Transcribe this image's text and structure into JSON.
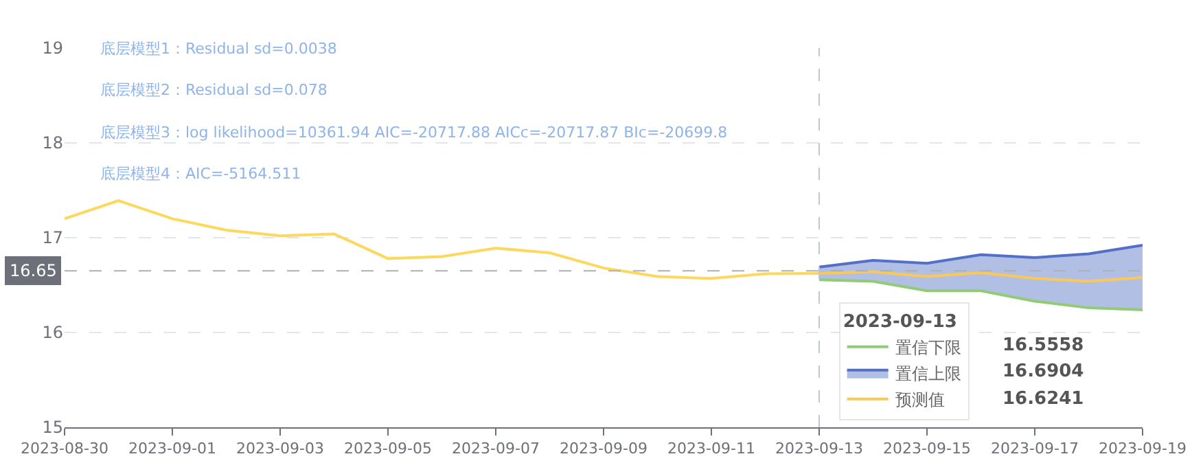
{
  "chart_data": {
    "type": "line",
    "x": [
      "2023-08-30",
      "2023-08-31",
      "2023-09-01",
      "2023-09-02",
      "2023-09-03",
      "2023-09-04",
      "2023-09-05",
      "2023-09-06",
      "2023-09-07",
      "2023-09-08",
      "2023-09-09",
      "2023-09-10",
      "2023-09-11",
      "2023-09-12",
      "2023-09-13"
    ],
    "series": [
      {
        "color": "#fdd85e",
        "values": [
          17.2,
          17.39,
          17.2,
          17.08,
          17.02,
          17.04,
          16.78,
          16.8,
          16.89,
          16.84,
          16.68,
          16.59,
          16.57,
          16.62,
          16.6241
        ]
      },
      {
        "name": "置信下限",
        "type": "line",
        "color": "#91cc75",
        "x": [
          "2023-09-13",
          "2023-09-14",
          "2023-09-15",
          "2023-09-16",
          "2023-09-17",
          "2023-09-18",
          "2023-09-19"
        ],
        "values": [
          16.5558,
          16.54,
          16.44,
          16.44,
          16.33,
          16.26,
          16.24
        ]
      },
      {
        "name": "置信上限",
        "type": "area",
        "color": "#5470c6",
        "x": [
          "2023-09-13",
          "2023-09-14",
          "2023-09-15",
          "2023-09-16",
          "2023-09-17",
          "2023-09-18",
          "2023-09-19"
        ],
        "values": [
          16.6904,
          16.76,
          16.73,
          16.82,
          16.79,
          16.83,
          16.92
        ]
      },
      {
        "name": "预测值",
        "type": "line",
        "color": "#fac858",
        "x": [
          "2023-09-13",
          "2023-09-14",
          "2023-09-15",
          "2023-09-16",
          "2023-09-17",
          "2023-09-18",
          "2023-09-19"
        ],
        "values": [
          16.6241,
          16.64,
          16.59,
          16.63,
          16.57,
          16.54,
          16.58
        ]
      }
    ],
    "xlim": [
      "2023-08-30",
      "2023-09-19"
    ],
    "xticks": [
      {
        "value": "2023-08-30",
        "label": "2023-08-30"
      },
      {
        "value": "2023-09-01",
        "label": "2023-09-01"
      },
      {
        "value": "2023-09-03",
        "label": "2023-09-03"
      },
      {
        "value": "2023-09-05",
        "label": "2023-09-05"
      },
      {
        "value": "2023-09-07",
        "label": "2023-09-07"
      },
      {
        "value": "2023-09-09",
        "label": "2023-09-09"
      },
      {
        "value": "2023-09-11",
        "label": "2023-09-11"
      },
      {
        "value": "2023-09-13",
        "label": "2023-09-13"
      },
      {
        "value": "2023-09-15",
        "label": "2023-09-15"
      },
      {
        "value": "2023-09-17",
        "label": "2023-09-17"
      },
      {
        "value": "2023-09-19",
        "label": "2023-09-19"
      }
    ],
    "ylim": [
      15,
      19
    ],
    "yticks": [
      15,
      16,
      17,
      18,
      19
    ],
    "grid": "y",
    "marker": "none",
    "line_style": "solid",
    "legend": "bottom right",
    "legend_title": "2023-09-13",
    "ref_lines": [
      {
        "axis": "x",
        "value": "2023-09-13",
        "label": null,
        "color": "#c0c4d8",
        "line_style": "dashed"
      },
      {
        "axis": "y",
        "value": 16.65,
        "label": "16.65",
        "color": "#b0b0b0",
        "line_style": "dashed"
      }
    ],
    "annotations": [
      "底层模型1：Residual sd=0.0038",
      "底层模型2：Residual sd=0.078",
      "底层模型3：log likelihood=10361.94 AIC=-20717.88 AICc=-20717.87 BIc=-20699.8",
      "底层模型4：AIC=-5164.511",
      "16.5558",
      "16.6904",
      "16.6241"
    ]
  }
}
